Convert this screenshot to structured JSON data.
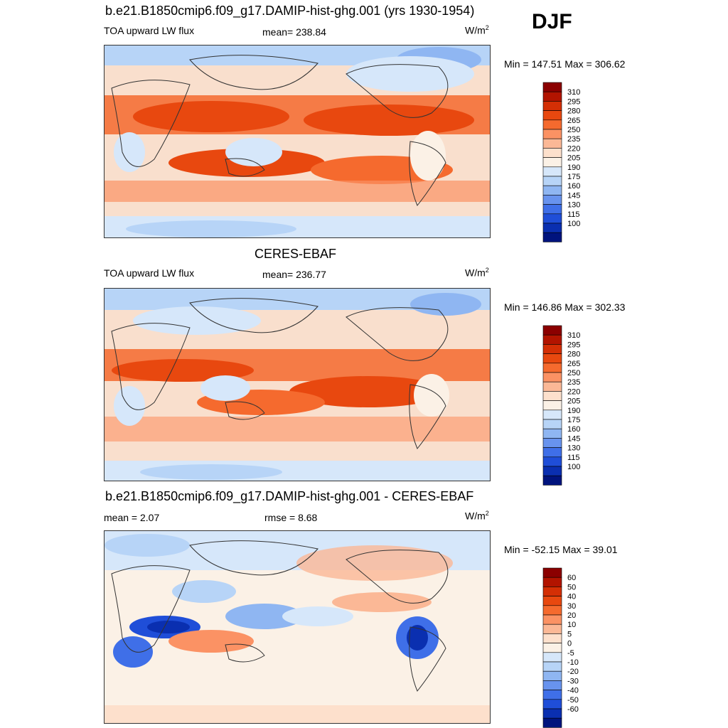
{
  "season": "DJF",
  "chart_data": [
    {
      "type": "heatmap",
      "title": "b.e21.B1850cmip6.f09_g17.DAMIP-hist-ghg.001 (yrs 1930-1954)",
      "left_label": "TOA upward LW flux",
      "center_label": "mean= 238.84",
      "units": "W/m",
      "units_sup": "2",
      "minmax": "Min = 147.51 Max = 306.62",
      "mean": 238.84,
      "min": 147.51,
      "max": 306.62,
      "colorbar_levels": [
        "310",
        "295",
        "280",
        "265",
        "250",
        "235",
        "220",
        "205",
        "190",
        "175",
        "160",
        "145",
        "130",
        "115",
        "100"
      ],
      "colorbar_colors": [
        "#8b0000",
        "#b21400",
        "#d42f05",
        "#e8480f",
        "#f56a2e",
        "#fb9264",
        "#fbb896",
        "#fde0cc",
        "#fbf1e6",
        "#d6e7fa",
        "#b7d4f7",
        "#8fb6f2",
        "#6893ee",
        "#3f6fe8",
        "#1f4ed8",
        "#0a2fb0",
        "#00137d"
      ]
    },
    {
      "type": "heatmap",
      "title": "CERES-EBAF",
      "left_label": "TOA upward LW flux",
      "center_label": "mean= 236.77",
      "units": "W/m",
      "units_sup": "2",
      "minmax": "Min = 146.86 Max = 302.33",
      "mean": 236.77,
      "min": 146.86,
      "max": 302.33,
      "colorbar_levels": [
        "310",
        "295",
        "280",
        "265",
        "250",
        "235",
        "220",
        "205",
        "190",
        "175",
        "160",
        "145",
        "130",
        "115",
        "100"
      ],
      "colorbar_colors": [
        "#8b0000",
        "#b21400",
        "#d42f05",
        "#e8480f",
        "#f56a2e",
        "#fb9264",
        "#fbb896",
        "#fde0cc",
        "#fbf1e6",
        "#d6e7fa",
        "#b7d4f7",
        "#8fb6f2",
        "#6893ee",
        "#3f6fe8",
        "#1f4ed8",
        "#0a2fb0",
        "#00137d"
      ]
    },
    {
      "type": "heatmap",
      "title": "b.e21.B1850cmip6.f09_g17.DAMIP-hist-ghg.001 - CERES-EBAF",
      "left_label": "mean =   2.07",
      "center_label": "rmse =   8.68",
      "units": "W/m",
      "units_sup": "2",
      "minmax": "Min = -52.15 Max =  39.01",
      "mean": 2.07,
      "rmse": 8.68,
      "min": -52.15,
      "max": 39.01,
      "colorbar_levels": [
        "60",
        "50",
        "40",
        "30",
        "20",
        "10",
        "5",
        "0",
        "-5",
        "-10",
        "-20",
        "-30",
        "-40",
        "-50",
        "-60"
      ],
      "colorbar_colors": [
        "#8b0000",
        "#b21400",
        "#d42f05",
        "#e8480f",
        "#f56a2e",
        "#fb9264",
        "#fbb896",
        "#fde0cc",
        "#fbf1e6",
        "#d6e7fa",
        "#b7d4f7",
        "#8fb6f2",
        "#6893ee",
        "#3f6fe8",
        "#1f4ed8",
        "#0a2fb0",
        "#00137d"
      ]
    }
  ]
}
